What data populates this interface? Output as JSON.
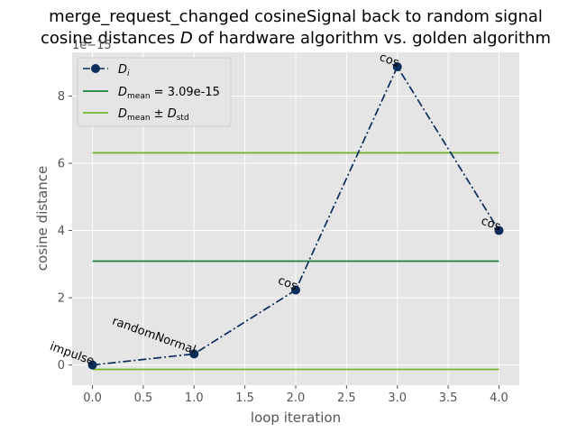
{
  "chart_data": {
    "type": "line",
    "title_line1": "merge_request_changed cosineSignal back to random signal",
    "title_line2_prefix": "cosine distances ",
    "title_line2_symbol": "D",
    "title_line2_suffix": " of hardware algorithm vs. golden algorithm",
    "xlabel": "loop iteration",
    "ylabel": "cosine distance",
    "y_offset_text": "1e−15",
    "xlim": [
      -0.2,
      4.2
    ],
    "ylim": [
      -6e-16,
      9.3e-15
    ],
    "x_ticks": [
      0.0,
      0.5,
      1.0,
      1.5,
      2.0,
      2.5,
      3.0,
      3.5,
      4.0
    ],
    "x_tick_labels": [
      "0.0",
      "0.5",
      "1.0",
      "1.5",
      "2.0",
      "2.5",
      "3.0",
      "3.5",
      "4.0"
    ],
    "y_ticks": [
      0,
      2e-15,
      4e-15,
      6e-15,
      8e-15
    ],
    "y_tick_labels": [
      "0",
      "2",
      "4",
      "6",
      "8"
    ],
    "grid": true,
    "legend_position": "top-left",
    "series": [
      {
        "name": "D_i",
        "legend_main": "D",
        "legend_sub": "i",
        "color": "#0b2d5b",
        "style": "dashdot-markers",
        "x": [
          0,
          1,
          2,
          3,
          4
        ],
        "y": [
          0.0,
          3.3e-16,
          2.23e-15,
          8.87e-15,
          4e-15
        ],
        "annotations": [
          "impulse",
          "randomNormal",
          "cos",
          "cos",
          "cos"
        ]
      },
      {
        "name": "D_mean = 3.09e-15",
        "legend_main": "D",
        "legend_sub": "mean",
        "legend_suffix": " = 3.09e-15",
        "color": "#1a7f3c",
        "style": "hline",
        "y": 3.09e-15
      },
      {
        "name": "D_mean ± D_std",
        "legend_main": "D",
        "legend_sub": "mean",
        "legend_mid": " ± ",
        "legend_main2": "D",
        "legend_sub2": "std",
        "color": "#72b82e",
        "style": "hline-pair",
        "y": [
          6.31e-15,
          -1.3e-16
        ]
      }
    ]
  }
}
